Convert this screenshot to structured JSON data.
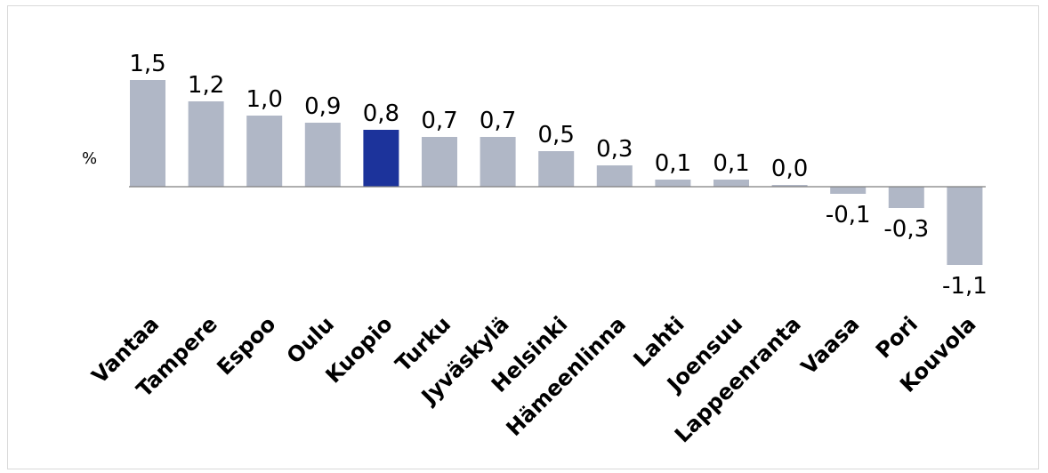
{
  "chart_data": {
    "type": "bar",
    "unit_label": "%",
    "categories": [
      "Vantaa",
      "Tampere",
      "Espoo",
      "Oulu",
      "Kuopio",
      "Turku",
      "Jyväskylä",
      "Helsinki",
      "Hämeenlinna",
      "Lahti",
      "Joensuu",
      "Lappeenranta",
      "Vaasa",
      "Pori",
      "Kouvola"
    ],
    "values": [
      1.5,
      1.2,
      1.0,
      0.9,
      0.8,
      0.7,
      0.7,
      0.5,
      0.3,
      0.1,
      0.1,
      0.0,
      -0.1,
      -0.3,
      -1.1
    ],
    "value_labels": [
      "1,5",
      "1,2",
      "1,0",
      "0,9",
      "0,8",
      "0,7",
      "0,7",
      "0,5",
      "0,3",
      "0,1",
      "0,1",
      "0,0",
      "-0,1",
      "-0,3",
      "-1,1"
    ],
    "highlight_category": "Kuopio",
    "colors": {
      "bar": "#b0b7c6",
      "highlight": "#1c339b",
      "axis": "#7f7f7f"
    },
    "ylim": [
      -1.2,
      1.6
    ],
    "grid": false,
    "legend": "none"
  }
}
